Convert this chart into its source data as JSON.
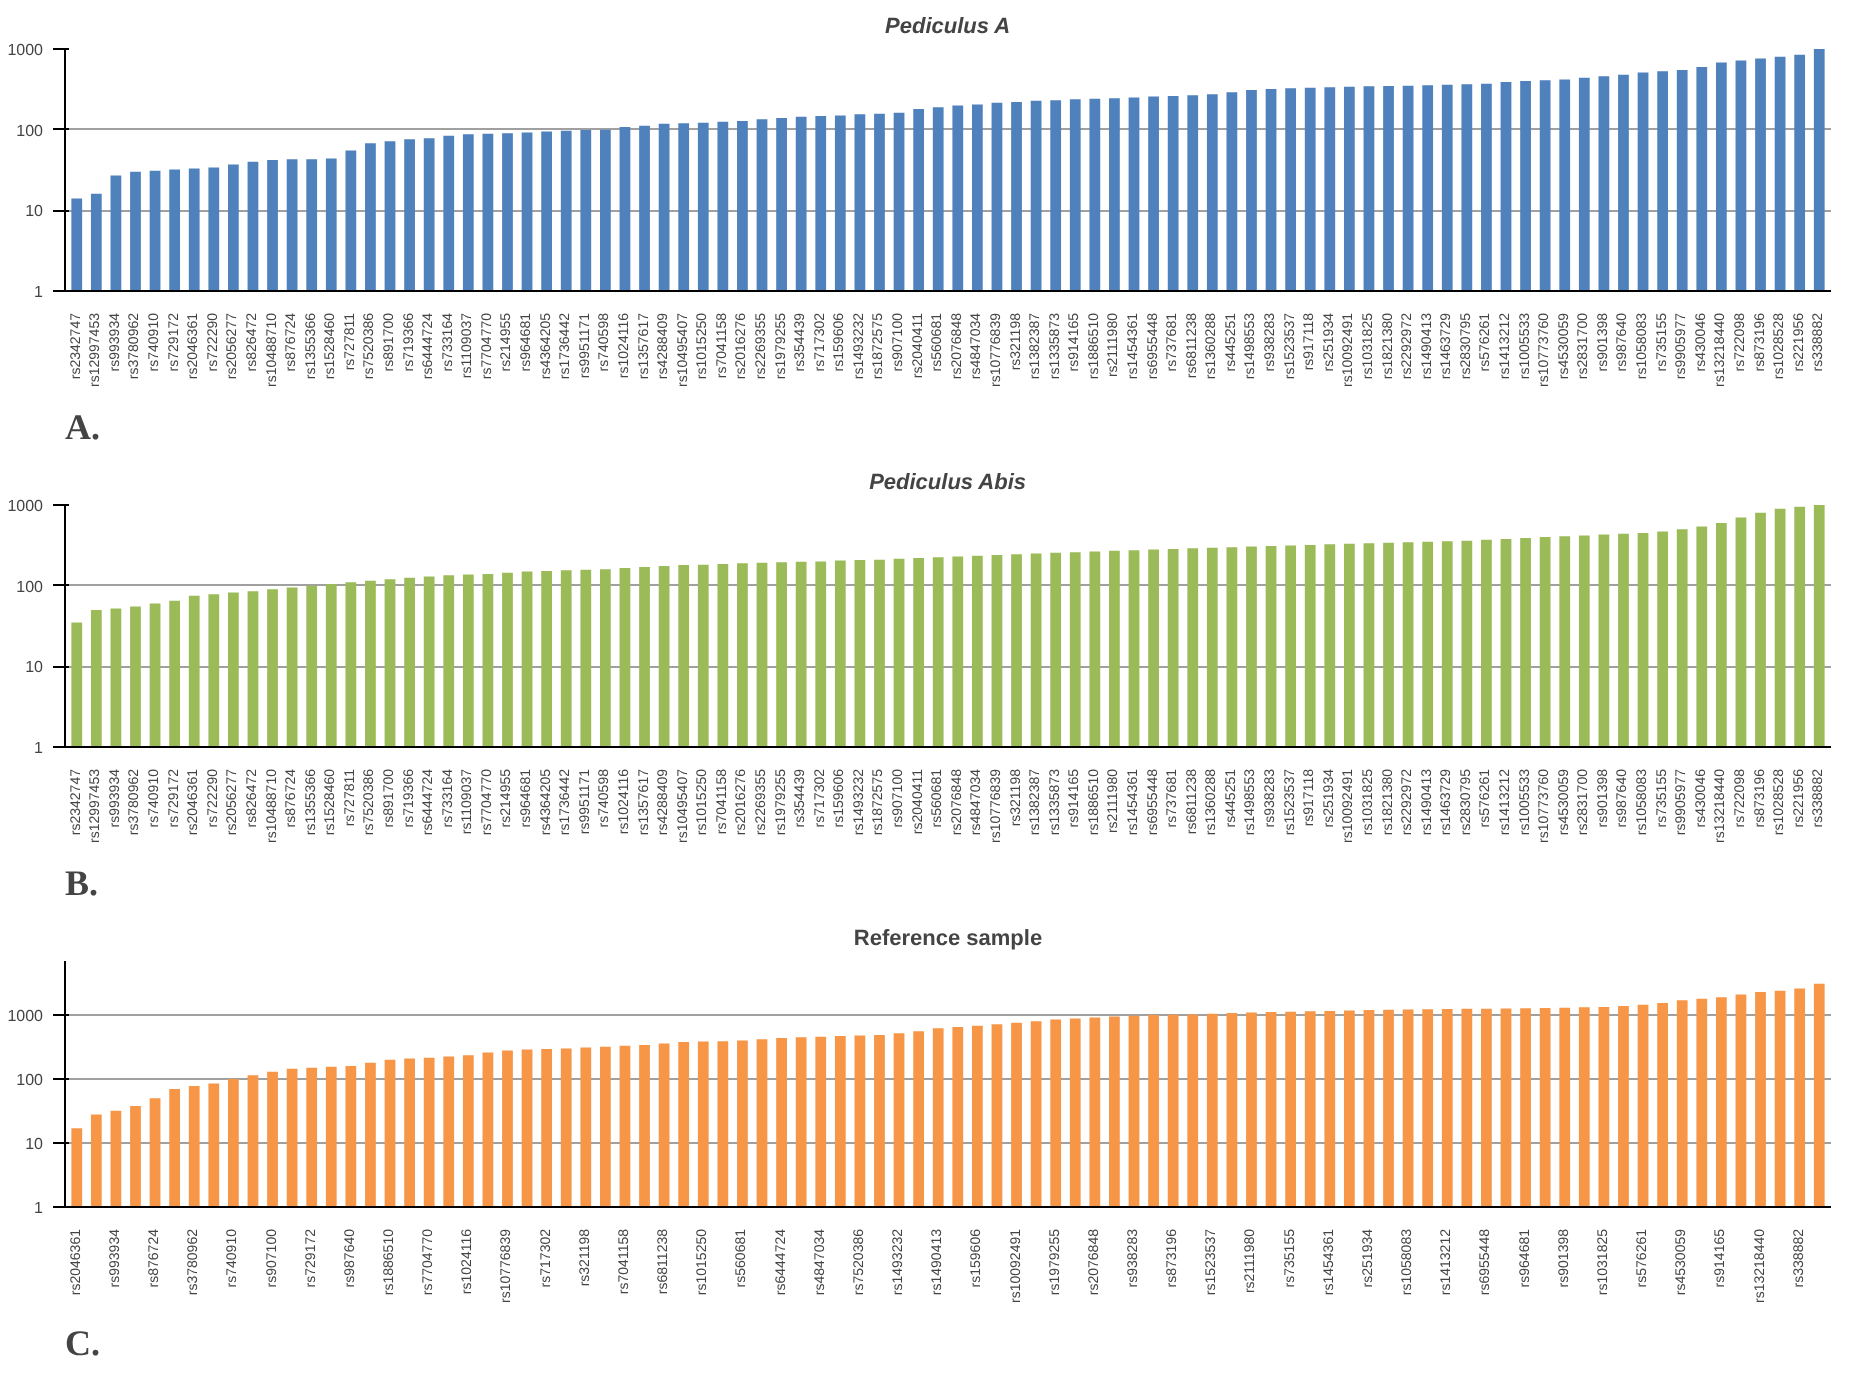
{
  "chart_data": [
    {
      "type": "bar",
      "title": "Pediculus A",
      "log": true,
      "grid": "y",
      "ylim": [
        1,
        1000
      ],
      "yticks": [
        1,
        10,
        100,
        1000
      ],
      "annotations": [
        "A."
      ],
      "categories": [
        "rs2342747",
        "rs12997453",
        "rs993934",
        "rs3780962",
        "rs740910",
        "rs729172",
        "rs2046361",
        "rs722290",
        "rs2056277",
        "rs826472",
        "rs10488710",
        "rs876724",
        "rs1355366",
        "rs1528460",
        "rs727811",
        "rs7520386",
        "rs891700",
        "rs719366",
        "rs6444724",
        "rs733164",
        "rs1109037",
        "rs7704770",
        "rs214955",
        "rs964681",
        "rs4364205",
        "rs1736442",
        "rs9951171",
        "rs740598",
        "rs1024116",
        "rs1357617",
        "rs4288409",
        "rs10495407",
        "rs1015250",
        "rs7041158",
        "rs2016276",
        "rs2269355",
        "rs1979255",
        "rs354439",
        "rs717302",
        "rs159606",
        "rs1493232",
        "rs1872575",
        "rs907100",
        "rs2040411",
        "rs560681",
        "rs2076848",
        "rs4847034",
        "rs10776839",
        "rs321198",
        "rs1382387",
        "rs1335873",
        "rs914165",
        "rs1886510",
        "rs2111980",
        "rs1454361",
        "rs6955448",
        "rs737681",
        "rs6811238",
        "rs1360288",
        "rs445251",
        "rs1498553",
        "rs938283",
        "rs1523537",
        "rs917118",
        "rs251934",
        "rs10092491",
        "rs1031825",
        "rs1821380",
        "rs2292972",
        "rs1490413",
        "rs1463729",
        "rs2830795",
        "rs576261",
        "rs1413212",
        "rs1005533",
        "rs10773760",
        "rs4530059",
        "rs2831700",
        "rs901398",
        "rs987640",
        "rs1058083",
        "rs735155",
        "rs9905977",
        "rs430046",
        "rs13218440",
        "rs722098",
        "rs873196",
        "rs1028528",
        "rs221956",
        "rs338882"
      ],
      "series": [
        {
          "color": "#4f81bd",
          "values": [
            14,
            16,
            27,
            30,
            31,
            32,
            33,
            34,
            37,
            40,
            42,
            43,
            43,
            44,
            55,
            68,
            72,
            76,
            78,
            84,
            88,
            89,
            90,
            92,
            95,
            97,
            99,
            100,
            108,
            112,
            118,
            120,
            122,
            125,
            128,
            135,
            140,
            145,
            148,
            150,
            155,
            158,
            162,
            180,
            190,
            200,
            205,
            215,
            220,
            228,
            232,
            238,
            242,
            245,
            250,
            258,
            262,
            268,
            275,
            290,
            310,
            320,
            325,
            330,
            335,
            340,
            345,
            348,
            350,
            355,
            360,
            365,
            370,
            390,
            400,
            410,
            420,
            440,
            460,
            480,
            510,
            530,
            550,
            600,
            680,
            720,
            760,
            800,
            850,
            1000
          ]
        }
      ]
    },
    {
      "type": "bar",
      "title": "Pediculus Abis",
      "log": true,
      "grid": "y",
      "ylim": [
        1,
        1000
      ],
      "yticks": [
        1,
        10,
        100,
        1000
      ],
      "annotations": [
        "B."
      ],
      "categories": [
        "rs2342747",
        "rs12997453",
        "rs993934",
        "rs3780962",
        "rs740910",
        "rs729172",
        "rs2046361",
        "rs722290",
        "rs2056277",
        "rs826472",
        "rs10488710",
        "rs876724",
        "rs1355366",
        "rs1528460",
        "rs727811",
        "rs7520386",
        "rs891700",
        "rs719366",
        "rs6444724",
        "rs733164",
        "rs1109037",
        "rs7704770",
        "rs214955",
        "rs964681",
        "rs4364205",
        "rs1736442",
        "rs9951171",
        "rs740598",
        "rs1024116",
        "rs1357617",
        "rs4288409",
        "rs10495407",
        "rs1015250",
        "rs7041158",
        "rs2016276",
        "rs2269355",
        "rs1979255",
        "rs354439",
        "rs717302",
        "rs159606",
        "rs1493232",
        "rs1872575",
        "rs907100",
        "rs2040411",
        "rs560681",
        "rs2076848",
        "rs4847034",
        "rs10776839",
        "rs321198",
        "rs1382387",
        "rs1335873",
        "rs914165",
        "rs1886510",
        "rs2111980",
        "rs1454361",
        "rs6955448",
        "rs737681",
        "rs6811238",
        "rs1360288",
        "rs445251",
        "rs1498553",
        "rs938283",
        "rs1523537",
        "rs917118",
        "rs251934",
        "rs10092491",
        "rs1031825",
        "rs1821380",
        "rs2292972",
        "rs1490413",
        "rs1463729",
        "rs2830795",
        "rs576261",
        "rs1413212",
        "rs1005533",
        "rs10773760",
        "rs4530059",
        "rs2831700",
        "rs901398",
        "rs987640",
        "rs1058083",
        "rs735155",
        "rs9905977",
        "rs430046",
        "rs13218440",
        "rs722098",
        "rs873196",
        "rs1028528",
        "rs221956",
        "rs338882"
      ],
      "series": [
        {
          "color": "#9bbb59",
          "values": [
            35,
            50,
            52,
            55,
            60,
            65,
            75,
            78,
            82,
            85,
            90,
            95,
            100,
            105,
            110,
            115,
            120,
            125,
            130,
            135,
            138,
            140,
            145,
            150,
            152,
            155,
            158,
            160,
            165,
            170,
            175,
            180,
            182,
            185,
            190,
            192,
            195,
            198,
            200,
            205,
            208,
            210,
            215,
            220,
            225,
            230,
            235,
            240,
            245,
            250,
            255,
            260,
            265,
            270,
            275,
            280,
            285,
            290,
            295,
            300,
            305,
            310,
            315,
            320,
            325,
            330,
            335,
            340,
            345,
            350,
            355,
            360,
            370,
            380,
            390,
            400,
            410,
            420,
            430,
            440,
            450,
            470,
            500,
            540,
            600,
            700,
            800,
            900,
            950,
            1000
          ]
        }
      ]
    },
    {
      "type": "bar",
      "title": "Reference sample",
      "log": true,
      "grid": "y",
      "ylim": [
        1,
        7000
      ],
      "yticks": [
        1,
        10,
        100,
        1000
      ],
      "annotations": [
        "C."
      ],
      "categories": [
        "rs2046361",
        null,
        "rs993934",
        null,
        "rs876724",
        null,
        "rs3780962",
        null,
        "rs740910",
        null,
        "rs907100",
        null,
        "rs729172",
        null,
        "rs987640",
        null,
        "rs1886510",
        null,
        "rs7704770",
        null,
        "rs1024116",
        null,
        "rs10776839",
        null,
        "rs717302",
        null,
        "rs321198",
        null,
        "rs7041158",
        null,
        "rs6811238",
        null,
        "rs1015250",
        null,
        "rs560681",
        null,
        "rs6444724",
        null,
        "rs4847034",
        null,
        "rs7520386",
        null,
        "rs1493232",
        null,
        "rs1490413",
        null,
        "rs159606",
        null,
        "rs10092491",
        null,
        "rs1979255",
        null,
        "rs2076848",
        null,
        "rs938283",
        null,
        "rs873196",
        null,
        "rs1523537",
        null,
        "rs2111980",
        null,
        "rs735155",
        null,
        "rs1454361",
        null,
        "rs251934",
        null,
        "rs1058083",
        null,
        "rs1413212",
        null,
        "rs6955448",
        null,
        "rs964681",
        null,
        "rs901398",
        null,
        "rs1031825",
        null,
        "rs576261",
        null,
        "rs4530059",
        null,
        "rs914165",
        null,
        "rs13218440",
        null,
        "rs338882",
        null
      ],
      "series": [
        {
          "color": "#f79646",
          "values": [
            17,
            28,
            32,
            38,
            50,
            70,
            78,
            85,
            100,
            115,
            130,
            145,
            150,
            155,
            160,
            180,
            200,
            210,
            215,
            225,
            235,
            260,
            280,
            290,
            295,
            300,
            310,
            320,
            330,
            340,
            360,
            380,
            385,
            390,
            400,
            420,
            440,
            450,
            460,
            470,
            480,
            490,
            520,
            560,
            620,
            650,
            680,
            720,
            760,
            800,
            850,
            880,
            920,
            950,
            980,
            1000,
            1010,
            1020,
            1050,
            1080,
            1100,
            1120,
            1130,
            1150,
            1160,
            1180,
            1200,
            1210,
            1220,
            1230,
            1240,
            1250,
            1260,
            1270,
            1280,
            1290,
            1300,
            1320,
            1340,
            1380,
            1450,
            1550,
            1700,
            1800,
            1900,
            2100,
            2300,
            2400,
            2600,
            3100
          ]
        }
      ]
    }
  ]
}
